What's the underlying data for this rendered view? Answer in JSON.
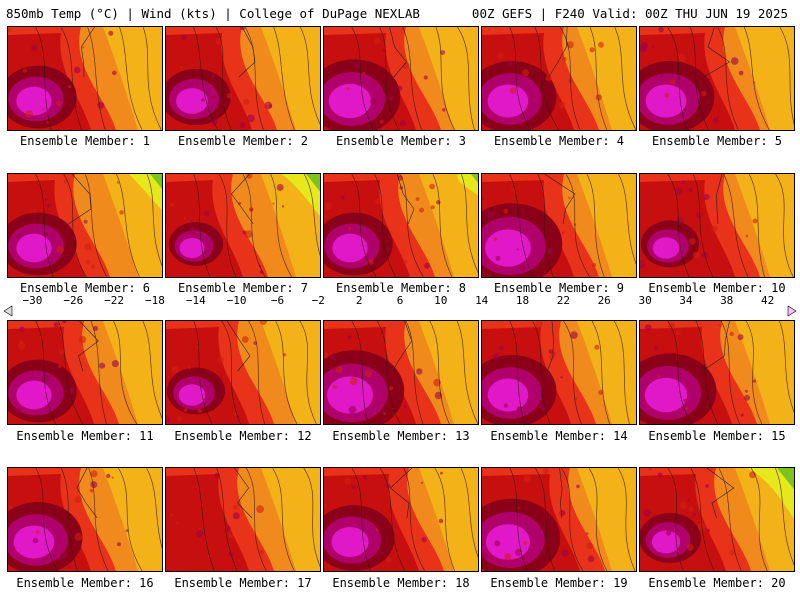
{
  "header": {
    "left": "850mb Temp (°C) | Wind (kts) | College of DuPage NEXLAB",
    "right": "00Z GEFS | F240 Valid: 00Z THU JUN 19 2025"
  },
  "caption_prefix": "Ensemble Member: ",
  "members": [
    {
      "number": 1,
      "caption": "Ensemble Member: 1",
      "hot": 0.55,
      "warm": 0.55,
      "cool": 0.1
    },
    {
      "number": 2,
      "caption": "Ensemble Member: 2",
      "hot": 0.45,
      "warm": 0.6,
      "cool": 0.0
    },
    {
      "number": 3,
      "caption": "Ensemble Member: 3",
      "hot": 0.75,
      "warm": 0.7,
      "cool": 0.0
    },
    {
      "number": 4,
      "caption": "Ensemble Member: 4",
      "hot": 0.7,
      "warm": 0.7,
      "cool": 0.0
    },
    {
      "number": 5,
      "caption": "Ensemble Member: 5",
      "hot": 0.7,
      "warm": 0.75,
      "cool": 0.0
    },
    {
      "number": 6,
      "caption": "Ensemble Member: 6",
      "hot": 0.55,
      "warm": 0.45,
      "cool": 0.6
    },
    {
      "number": 7,
      "caption": "Ensemble Member: 7",
      "hot": 0.25,
      "warm": 0.45,
      "cool": 0.7
    },
    {
      "number": 8,
      "caption": "Ensemble Member: 8",
      "hot": 0.55,
      "warm": 0.6,
      "cool": 0.35
    },
    {
      "number": 9,
      "caption": "Ensemble Member: 9",
      "hot": 0.85,
      "warm": 0.7,
      "cool": 0.0
    },
    {
      "number": 10,
      "caption": "Ensemble Member: 10",
      "hot": 0.3,
      "warm": 0.75,
      "cool": 0.0
    },
    {
      "number": 11,
      "caption": "Ensemble Member: 11",
      "hot": 0.55,
      "warm": 0.6,
      "cool": 0.0
    },
    {
      "number": 12,
      "caption": "Ensemble Member: 12",
      "hot": 0.3,
      "warm": 0.55,
      "cool": 0.2
    },
    {
      "number": 13,
      "caption": "Ensemble Member: 13",
      "hot": 0.85,
      "warm": 0.7,
      "cool": 0.0
    },
    {
      "number": 14,
      "caption": "Ensemble Member: 14",
      "hot": 0.7,
      "warm": 0.65,
      "cool": 0.0
    },
    {
      "number": 15,
      "caption": "Ensemble Member: 15",
      "hot": 0.75,
      "warm": 0.7,
      "cool": 0.0
    },
    {
      "number": 16,
      "caption": "Ensemble Member: 16",
      "hot": 0.7,
      "warm": 0.55,
      "cool": 0.0
    },
    {
      "number": 17,
      "caption": "Ensemble Member: 17",
      "hot": 0.1,
      "warm": 0.55,
      "cool": 0.0
    },
    {
      "number": 18,
      "caption": "Ensemble Member: 18",
      "hot": 0.6,
      "warm": 0.75,
      "cool": 0.0
    },
    {
      "number": 19,
      "caption": "Ensemble Member: 19",
      "hot": 0.8,
      "warm": 0.8,
      "cool": 0.0
    },
    {
      "number": 20,
      "caption": "Ensemble Member: 20",
      "hot": 0.35,
      "warm": 0.6,
      "cool": 0.85
    }
  ],
  "colorbar": {
    "min": -32,
    "max": 44,
    "labels": [
      "-30",
      "-26",
      "-22",
      "-18",
      "-14",
      "-10",
      "-6",
      "-2",
      "2",
      "6",
      "10",
      "14",
      "18",
      "22",
      "26",
      "30",
      "34",
      "38",
      "42"
    ],
    "colors": [
      "#c8c8c8",
      "#7f7f7f",
      "#9a9a9a",
      "#6e6e6e",
      "#8f8f8f",
      "#b4b4b4",
      "#d0a4e8",
      "#c070e0",
      "#a040d8",
      "#7020c8",
      "#4010c0",
      "#2020d8",
      "#2060f0",
      "#20a0f0",
      "#30d0e8",
      "#40e0c0",
      "#20c080",
      "#40b040",
      "#80c020",
      "#c8e020",
      "#f0f000",
      "#f0c800",
      "#f0a000",
      "#f08000",
      "#f05000",
      "#e82000",
      "#c80000",
      "#a00000",
      "#880010",
      "#a00060",
      "#c000a0",
      "#e000c8",
      "#f040e0",
      "#f880f0"
    ]
  }
}
